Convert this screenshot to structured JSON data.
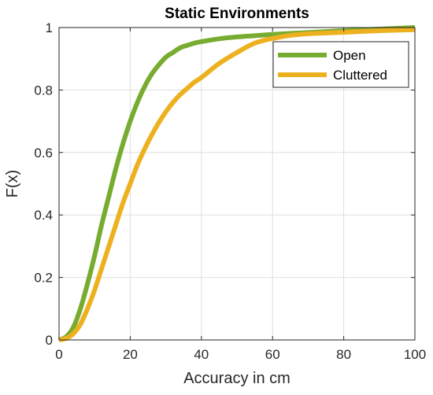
{
  "chart_data": {
    "type": "line",
    "title": "Static Environments",
    "xlabel": "Accuracy in cm",
    "ylabel": "F(x)",
    "xlim": [
      0,
      100
    ],
    "ylim": [
      0,
      1
    ],
    "xticks": [
      "0",
      "20",
      "40",
      "60",
      "80",
      "100"
    ],
    "yticks": [
      "0",
      "0.2",
      "0.4",
      "0.6",
      "0.8",
      "1"
    ],
    "grid": true,
    "legend_position": "top-right",
    "series": [
      {
        "name": "Open",
        "color": "#77ac30",
        "x": [
          0,
          2,
          4,
          6,
          8,
          10,
          12,
          14,
          16,
          18,
          20,
          22,
          24,
          26,
          28,
          30,
          32,
          34,
          36,
          38,
          40,
          45,
          50,
          55,
          60,
          70,
          80,
          90,
          100
        ],
        "y": [
          0,
          0.01,
          0.04,
          0.1,
          0.18,
          0.27,
          0.37,
          0.46,
          0.55,
          0.63,
          0.7,
          0.76,
          0.81,
          0.85,
          0.88,
          0.905,
          0.92,
          0.935,
          0.943,
          0.95,
          0.955,
          0.964,
          0.97,
          0.974,
          0.978,
          0.984,
          0.99,
          0.995,
          1.0
        ]
      },
      {
        "name": "Cluttered",
        "color": "#edb120",
        "x": [
          0,
          2,
          4,
          6,
          8,
          10,
          12,
          14,
          16,
          18,
          20,
          22,
          24,
          26,
          28,
          30,
          32,
          34,
          36,
          38,
          40,
          45,
          50,
          55,
          60,
          65,
          70,
          80,
          90,
          100
        ],
        "y": [
          0,
          0.005,
          0.02,
          0.05,
          0.1,
          0.16,
          0.23,
          0.3,
          0.37,
          0.44,
          0.5,
          0.56,
          0.61,
          0.655,
          0.695,
          0.73,
          0.76,
          0.785,
          0.805,
          0.825,
          0.84,
          0.885,
          0.92,
          0.95,
          0.965,
          0.975,
          0.98,
          0.985,
          0.99,
          0.993
        ]
      }
    ]
  }
}
